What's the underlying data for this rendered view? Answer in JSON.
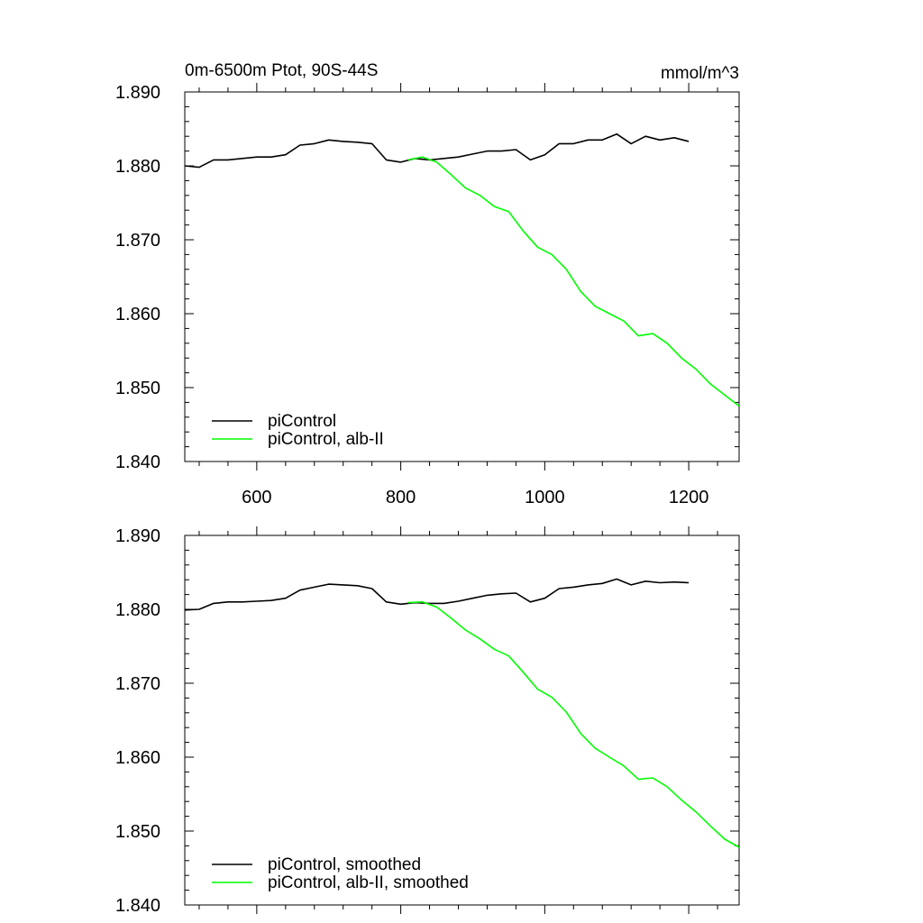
{
  "chart_data": [
    {
      "type": "line",
      "title": "0m-6500m Ptot, 90S-44S",
      "units": "mmol/m^3",
      "xlim": [
        500,
        1270
      ],
      "ylim": [
        1.84,
        1.89
      ],
      "x_ticks": [
        600,
        800,
        1000,
        1200
      ],
      "x_tick_labels": [
        "600",
        "800",
        "1000",
        "1200"
      ],
      "y_ticks": [
        1.84,
        1.85,
        1.86,
        1.87,
        1.88,
        1.89
      ],
      "y_tick_labels": [
        "1.840",
        "1.850",
        "1.860",
        "1.870",
        "1.880",
        "1.890"
      ],
      "legend_position": "bottom-left",
      "grid": false,
      "series": [
        {
          "name": "piControl",
          "color": "#000000",
          "x": [
            500,
            520,
            540,
            560,
            580,
            600,
            620,
            640,
            660,
            680,
            700,
            720,
            740,
            760,
            780,
            800,
            820,
            840,
            860,
            880,
            900,
            920,
            940,
            960,
            980,
            1000,
            1020,
            1040,
            1060,
            1080,
            1100,
            1120,
            1140,
            1160,
            1180,
            1200
          ],
          "values": [
            1.88,
            1.8798,
            1.8808,
            1.8808,
            1.881,
            1.8812,
            1.8812,
            1.8815,
            1.8828,
            1.883,
            1.8835,
            1.8833,
            1.8832,
            1.883,
            1.8808,
            1.8805,
            1.881,
            1.8808,
            1.881,
            1.8812,
            1.8816,
            1.882,
            1.882,
            1.8822,
            1.8808,
            1.8815,
            1.883,
            1.883,
            1.8835,
            1.8835,
            1.8843,
            1.883,
            1.884,
            1.8835,
            1.8838,
            1.8833
          ]
        },
        {
          "name": "piControl, alb-II",
          "color": "#00ff00",
          "x": [
            810,
            830,
            850,
            870,
            890,
            910,
            930,
            950,
            970,
            990,
            1010,
            1030,
            1050,
            1070,
            1090,
            1110,
            1130,
            1150,
            1170,
            1190,
            1210,
            1230,
            1250,
            1270
          ],
          "values": [
            1.8808,
            1.8812,
            1.8805,
            1.8788,
            1.877,
            1.876,
            1.8745,
            1.8738,
            1.8712,
            1.869,
            1.868,
            1.866,
            1.863,
            1.861,
            1.86,
            1.859,
            1.857,
            1.8573,
            1.856,
            1.854,
            1.8525,
            1.8505,
            1.849,
            1.8475
          ]
        }
      ]
    },
    {
      "type": "line",
      "xlim": [
        500,
        1270
      ],
      "ylim": [
        1.84,
        1.89
      ],
      "x_ticks": [
        600,
        800,
        1000,
        1200
      ],
      "x_tick_labels": [],
      "y_ticks": [
        1.84,
        1.85,
        1.86,
        1.87,
        1.88,
        1.89
      ],
      "y_tick_labels": [
        "1.840",
        "1.850",
        "1.860",
        "1.870",
        "1.880",
        "1.890"
      ],
      "legend_position": "bottom-left",
      "grid": false,
      "series": [
        {
          "name": "piControl, smoothed",
          "color": "#000000",
          "x": [
            500,
            520,
            540,
            560,
            580,
            600,
            620,
            640,
            660,
            680,
            700,
            720,
            740,
            760,
            780,
            800,
            820,
            840,
            860,
            880,
            900,
            920,
            940,
            960,
            980,
            1000,
            1020,
            1040,
            1060,
            1080,
            1100,
            1120,
            1140,
            1160,
            1180,
            1200
          ],
          "values": [
            1.8799,
            1.88,
            1.8808,
            1.881,
            1.881,
            1.8811,
            1.8812,
            1.8815,
            1.8826,
            1.883,
            1.8834,
            1.8833,
            1.8832,
            1.8828,
            1.881,
            1.8807,
            1.8809,
            1.8808,
            1.8808,
            1.8811,
            1.8815,
            1.8819,
            1.8821,
            1.8822,
            1.881,
            1.8815,
            1.8828,
            1.883,
            1.8833,
            1.8835,
            1.8841,
            1.8833,
            1.8838,
            1.8836,
            1.8837,
            1.8836
          ]
        },
        {
          "name": "piControl, alb-II, smoothed",
          "color": "#00ff00",
          "x": [
            810,
            830,
            850,
            870,
            890,
            910,
            930,
            950,
            970,
            990,
            1010,
            1030,
            1050,
            1070,
            1090,
            1110,
            1130,
            1150,
            1170,
            1190,
            1210,
            1230,
            1250,
            1270
          ],
          "values": [
            1.8809,
            1.881,
            1.8803,
            1.8788,
            1.8772,
            1.876,
            1.8746,
            1.8737,
            1.8715,
            1.8692,
            1.8681,
            1.8661,
            1.8632,
            1.8612,
            1.86,
            1.8588,
            1.857,
            1.8572,
            1.856,
            1.8542,
            1.8526,
            1.8507,
            1.8489,
            1.8478
          ]
        }
      ]
    }
  ]
}
